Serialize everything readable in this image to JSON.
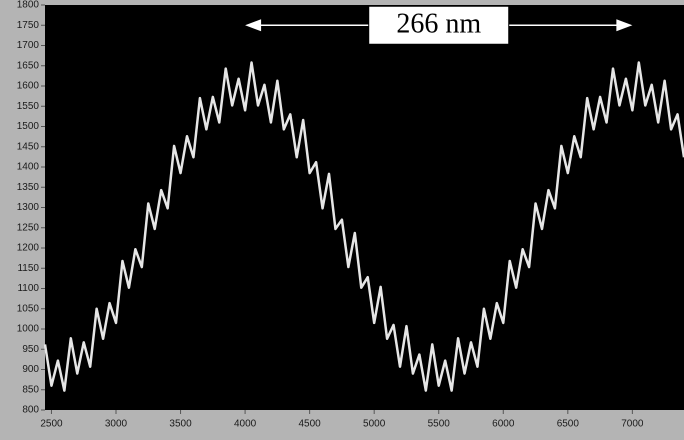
{
  "chart_data": {
    "type": "line",
    "x": [
      2450,
      2500,
      2550,
      2600,
      2650,
      2700,
      2750,
      2800,
      2850,
      2900,
      2950,
      3000,
      3050,
      3100,
      3150,
      3200,
      3250,
      3300,
      3350,
      3400,
      3450,
      3500,
      3550,
      3600,
      3650,
      3700,
      3750,
      3800,
      3850,
      3900,
      3950,
      4000,
      4050,
      4100,
      4150,
      4200,
      4250,
      4300,
      4350,
      4400,
      4450,
      4500,
      4550,
      4600,
      4650,
      4700,
      4750,
      4800,
      4850,
      4900,
      4950,
      5000,
      5050,
      5100,
      5150,
      5200,
      5250,
      5300,
      5350,
      5400,
      5450,
      5500,
      5550,
      5600,
      5650,
      5700,
      5750,
      5800,
      5850,
      5900,
      5950,
      6000,
      6050,
      6100,
      6150,
      6200,
      6250,
      6300,
      6350,
      6400,
      6450,
      6500,
      6550,
      6600,
      6650,
      6700,
      6750,
      6800,
      6850,
      6900,
      6950,
      7000,
      7050,
      7100,
      7150,
      7200,
      7250,
      7300,
      7350,
      7400
    ],
    "values": [
      962,
      860,
      922,
      848,
      977,
      890,
      967,
      907,
      1050,
      976,
      1064,
      1015,
      1168,
      1102,
      1197,
      1153,
      1310,
      1247,
      1343,
      1298,
      1452,
      1385,
      1476,
      1424,
      1570,
      1493,
      1573,
      1510,
      1643,
      1552,
      1618,
      1540,
      1658,
      1552,
      1603,
      1510,
      1613,
      1493,
      1530,
      1424,
      1516,
      1385,
      1412,
      1298,
      1383,
      1247,
      1270,
      1153,
      1237,
      1102,
      1128,
      1015,
      1104,
      976,
      1010,
      907,
      1007,
      890,
      937,
      848,
      962,
      860,
      922,
      848,
      977,
      890,
      967,
      907,
      1050,
      976,
      1064,
      1015,
      1168,
      1102,
      1197,
      1153,
      1310,
      1247,
      1343,
      1298,
      1452,
      1385,
      1476,
      1424,
      1570,
      1493,
      1573,
      1510,
      1643,
      1552,
      1618,
      1540,
      1658,
      1552,
      1603,
      1510,
      1613,
      1493,
      1530,
      1424
    ],
    "color": "#e6e6e6",
    "xlim": [
      2450,
      7400
    ],
    "xticks": [
      2500,
      3000,
      3500,
      4000,
      4500,
      5000,
      5500,
      6000,
      6500,
      7000
    ],
    "ylim": [
      800,
      1800
    ],
    "yticks": [
      800,
      850,
      900,
      950,
      1000,
      1050,
      1100,
      1150,
      1200,
      1250,
      1300,
      1350,
      1400,
      1450,
      1500,
      1550,
      1600,
      1650,
      1700,
      1750,
      1800
    ],
    "annotation": {
      "text": "266 nm",
      "x_start": 4000,
      "x_end": 7000,
      "y": 1750
    }
  }
}
